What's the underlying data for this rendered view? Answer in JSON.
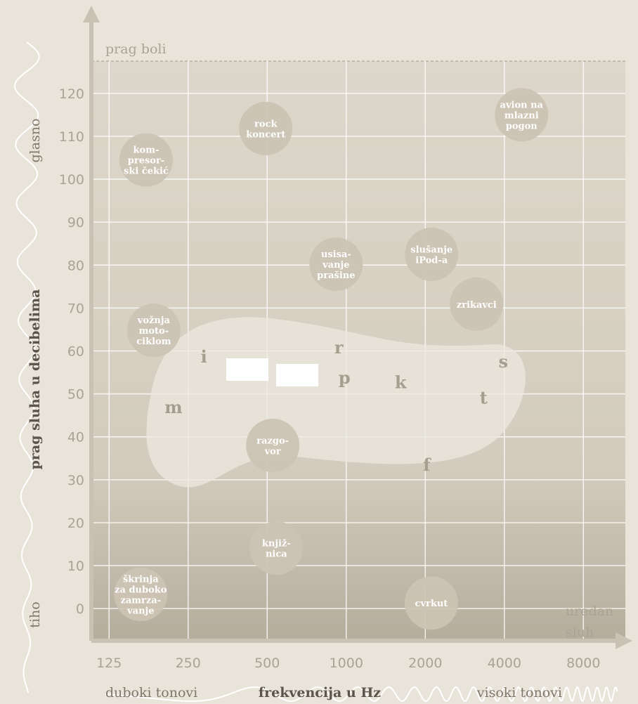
{
  "chart_data": {
    "type": "scatter",
    "y_label": "prag sluha u decibelima",
    "y_low": "tiho",
    "y_high": "glasno",
    "x_label": "frekvencija u Hz",
    "x_low": "duboki tonovi",
    "x_high": "visoki tonovi",
    "top_line_label": "prag boli",
    "bottom_label": [
      "uredan",
      "sluh"
    ],
    "log_x": true,
    "grid": true,
    "xlim": [
      107,
      11560
    ],
    "xticks": [
      125,
      250,
      500,
      1000,
      2000,
      4000,
      8000
    ],
    "ylim": [
      -7.5,
      127.5
    ],
    "yticks": [
      0,
      10,
      20,
      30,
      40,
      50,
      60,
      70,
      80,
      90,
      100,
      110,
      120
    ],
    "points": [
      {
        "label": [
          "kom-",
          "presor-",
          "ski čekić"
        ],
        "x": 173,
        "y": 104.5
      },
      {
        "label": [
          "rock",
          "koncert"
        ],
        "x": 494,
        "y": 111.8
      },
      {
        "label": [
          "avion na",
          "mlazni",
          "pogon"
        ],
        "x": 4652,
        "y": 115
      },
      {
        "label": [
          "slušanje",
          "iPod-a"
        ],
        "x": 2114,
        "y": 82.5
      },
      {
        "label": [
          "usisa-",
          "vanje",
          "prašine"
        ],
        "x": 915,
        "y": 80.2
      },
      {
        "label": [
          "vožnja",
          "moto-",
          "ciklom"
        ],
        "x": 185,
        "y": 64.8
      },
      {
        "label": [
          "zrikavci"
        ],
        "x": 3136,
        "y": 70.9
      },
      {
        "label": [
          "razgo-",
          "vor"
        ],
        "x": 525,
        "y": 38
      },
      {
        "label": [
          "knjiž-",
          "nica"
        ],
        "x": 542,
        "y": 14.1
      },
      {
        "label": [
          "škrinja",
          "za duboko",
          "zamrza-",
          "vanje"
        ],
        "x": 165,
        "y": 3.3
      },
      {
        "label": [
          "cvrkut"
        ],
        "x": 2110,
        "y": 1.3
      }
    ],
    "speech_sounds": [
      {
        "label": "m",
        "x": 220,
        "y": 46.8
      },
      {
        "label": "i",
        "x": 287,
        "y": 58.6
      },
      {
        "label": "r",
        "x": 937,
        "y": 60.7
      },
      {
        "label": "p",
        "x": 985,
        "y": 53.7
      },
      {
        "label": "k",
        "x": 1612,
        "y": 52.6
      },
      {
        "label": "t",
        "x": 3336,
        "y": 49
      },
      {
        "label": "s",
        "x": 3964,
        "y": 57.5
      },
      {
        "label": "f",
        "x": 2025,
        "y": 33.4
      }
    ]
  }
}
